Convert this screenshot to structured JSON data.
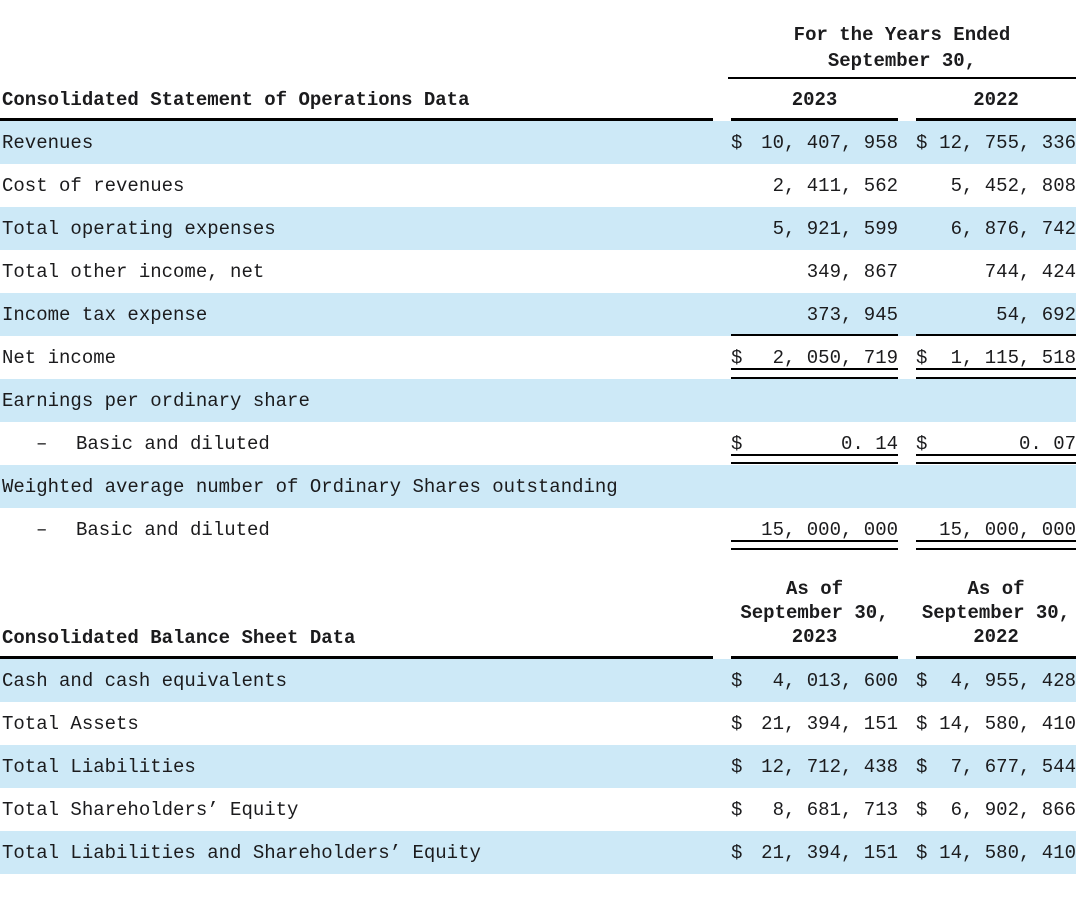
{
  "colors": {
    "row_highlight": "#cde9f7",
    "text": "#1b1b1d",
    "rule": "#000000",
    "background": "#ffffff"
  },
  "ops": {
    "period_line1": "For the Years Ended",
    "period_line2": "September 30,",
    "title": "Consolidated Statement of Operations Data",
    "years": [
      "2023",
      "2022"
    ],
    "rows": [
      {
        "label": "Revenues",
        "d1": "$",
        "v1": "10, 407, 958",
        "d2": "$",
        "v2": "12, 755, 336"
      },
      {
        "label": "Cost of revenues",
        "d1": "",
        "v1": "2, 411, 562",
        "d2": "",
        "v2": "5, 452, 808"
      },
      {
        "label": "Total operating expenses",
        "d1": "",
        "v1": "5, 921, 599",
        "d2": "",
        "v2": "6, 876, 742"
      },
      {
        "label": "Total other income, net",
        "d1": "",
        "v1": "349, 867",
        "d2": "",
        "v2": "744, 424"
      },
      {
        "label": "Income tax expense",
        "d1": "",
        "v1": "373, 945",
        "d2": "",
        "v2": "54, 692"
      },
      {
        "label": "Net income",
        "d1": "$",
        "v1": "2, 050, 719",
        "d2": "$",
        "v2": "1, 115, 518"
      },
      {
        "label": "Earnings per ordinary share",
        "d1": "",
        "v1": "",
        "d2": "",
        "v2": ""
      },
      {
        "prefix": "–",
        "label": "Basic and diluted",
        "d1": "$",
        "v1": "0. 14",
        "d2": "$",
        "v2": "0. 07"
      },
      {
        "label": "Weighted average number of Ordinary Shares outstanding",
        "d1": "",
        "v1": "",
        "d2": "",
        "v2": ""
      },
      {
        "prefix": "–",
        "label": "Basic and diluted",
        "d1": "",
        "v1": "15, 000, 000",
        "d2": "",
        "v2": "15, 000, 000"
      }
    ]
  },
  "bs": {
    "title": "Consolidated Balance Sheet Data",
    "col1": [
      "As of",
      "September 30,",
      "2023"
    ],
    "col2": [
      "As of",
      "September 30,",
      "2022"
    ],
    "rows": [
      {
        "label": "Cash and cash equivalents",
        "d1": "$",
        "v1": "4, 013, 600",
        "d2": "$",
        "v2": "4, 955, 428"
      },
      {
        "label": "Total Assets",
        "d1": "$",
        "v1": "21, 394, 151",
        "d2": "$",
        "v2": "14, 580, 410"
      },
      {
        "label": "Total Liabilities",
        "d1": "$",
        "v1": "12, 712, 438",
        "d2": "$",
        "v2": "7, 677, 544"
      },
      {
        "label": "Total Shareholders’ Equity",
        "d1": "$",
        "v1": "8, 681, 713",
        "d2": "$",
        "v2": "6, 902, 866"
      },
      {
        "label": "Total Liabilities and Shareholders’ Equity",
        "d1": "$",
        "v1": "21, 394, 151",
        "d2": "$",
        "v2": "14, 580, 410"
      }
    ]
  }
}
